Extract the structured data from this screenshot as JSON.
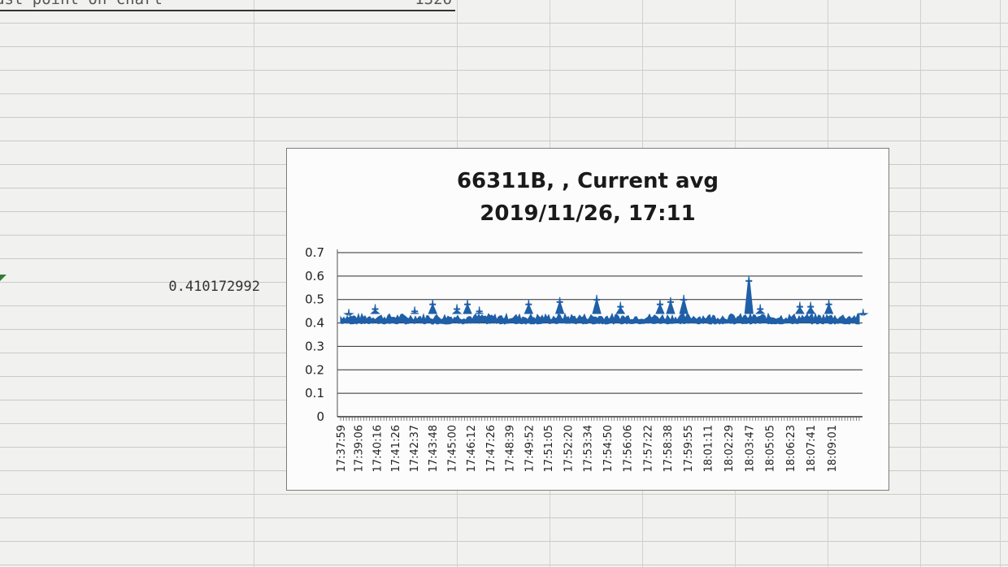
{
  "sheet": {
    "top_cell_label": "ast point on chart",
    "top_cell_value": "1326",
    "cell_value": "0.410172992"
  },
  "colors": {
    "series": "#1f5fa8",
    "gridline": "#2b2b2b",
    "marker": "#2e7d32"
  },
  "chart_data": {
    "type": "area",
    "title_line1": "66311B, , Current avg",
    "title_line2": "2019/11/26, 17:11",
    "xlabel": "",
    "ylabel": "",
    "ylim": [
      0,
      0.7
    ],
    "yticks": [
      "0",
      "0.1",
      "0.2",
      "0.3",
      "0.4",
      "0.5",
      "0.6",
      "0.7"
    ],
    "grid": true,
    "legend": "none",
    "x_ticks": [
      "17:37:59",
      "17:39:06",
      "17:40:16",
      "17:41:26",
      "17:42:37",
      "17:43:48",
      "17:45:00",
      "17:46:12",
      "17:47:26",
      "17:48:39",
      "17:49:52",
      "17:51:05",
      "17:52:20",
      "17:53:34",
      "17:54:50",
      "17:56:06",
      "17:57:22",
      "17:58:38",
      "17:59:55",
      "18:01:11",
      "18:02:29",
      "18:03:47",
      "18:05:05",
      "18:06:23",
      "18:07:41",
      "18:09:01"
    ],
    "series": [
      {
        "baseline_range": [
          0.4,
          0.44
        ],
        "spikes": [
          {
            "x": "17:38:30",
            "value": 0.46
          },
          {
            "x": "17:40:10",
            "value": 0.48
          },
          {
            "x": "17:42:40",
            "value": 0.47
          },
          {
            "x": "17:43:48",
            "value": 0.5
          },
          {
            "x": "17:45:20",
            "value": 0.48
          },
          {
            "x": "17:46:00",
            "value": 0.5
          },
          {
            "x": "17:46:45",
            "value": 0.47
          },
          {
            "x": "17:49:52",
            "value": 0.5
          },
          {
            "x": "17:51:50",
            "value": 0.51
          },
          {
            "x": "17:54:10",
            "value": 0.52
          },
          {
            "x": "17:55:40",
            "value": 0.49
          },
          {
            "x": "17:58:10",
            "value": 0.5
          },
          {
            "x": "17:58:50",
            "value": 0.51
          },
          {
            "x": "17:59:40",
            "value": 0.52
          },
          {
            "x": "18:03:47",
            "value": 0.6
          },
          {
            "x": "18:04:30",
            "value": 0.48
          },
          {
            "x": "18:07:00",
            "value": 0.49
          },
          {
            "x": "18:07:41",
            "value": 0.49
          },
          {
            "x": "18:08:50",
            "value": 0.5
          },
          {
            "x": "18:11:00",
            "value": 0.46
          }
        ]
      }
    ]
  }
}
